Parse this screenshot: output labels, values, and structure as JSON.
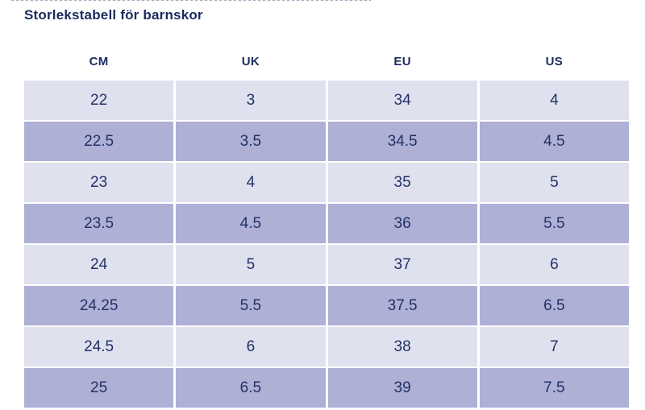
{
  "page": {
    "title": "Storlekstabell för barnskor"
  },
  "colors": {
    "title_navy": "#1a2c5e",
    "text_navy": "#223266",
    "row_light": "#e0e1ef",
    "row_dark": "#aeb0d6"
  },
  "table": {
    "headers": [
      "CM",
      "UK",
      "EU",
      "US"
    ],
    "rows": [
      [
        "22",
        "3",
        "34",
        "4"
      ],
      [
        "22.5",
        "3.5",
        "34.5",
        "4.5"
      ],
      [
        "23",
        "4",
        "35",
        "5"
      ],
      [
        "23.5",
        "4.5",
        "36",
        "5.5"
      ],
      [
        "24",
        "5",
        "37",
        "6"
      ],
      [
        "24.25",
        "5.5",
        "37.5",
        "6.5"
      ],
      [
        "24.5",
        "6",
        "38",
        "7"
      ],
      [
        "25",
        "6.5",
        "39",
        "7.5"
      ]
    ]
  }
}
